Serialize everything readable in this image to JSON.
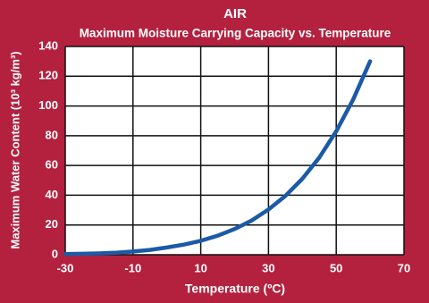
{
  "chart_data": {
    "type": "line",
    "title": "AIR",
    "subtitle": "Maximum Moisture Carrying Capacity vs. Temperature",
    "x_label": "Temperature (ºC)",
    "y_label": "Maximum Water Content (10³ kg/m³)",
    "x": [
      -30,
      -25,
      -20,
      -15,
      -10,
      -5,
      0,
      5,
      10,
      15,
      20,
      25,
      30,
      35,
      40,
      45,
      50,
      55,
      60
    ],
    "values": [
      0.45,
      0.64,
      0.89,
      1.39,
      2.14,
      3.24,
      4.85,
      6.8,
      9.4,
      12.8,
      17.3,
      23.0,
      30.4,
      39.6,
      51.1,
      65.4,
      83.0,
      104.3,
      130
    ],
    "color": "#1b5aa6",
    "xlim": [
      -30,
      70
    ],
    "xticks": [
      -30,
      -10,
      10,
      30,
      50,
      70
    ],
    "ylim": [
      0,
      140
    ],
    "yticks": [
      0,
      20,
      40,
      60,
      80,
      100,
      120,
      140
    ],
    "grid": true
  }
}
